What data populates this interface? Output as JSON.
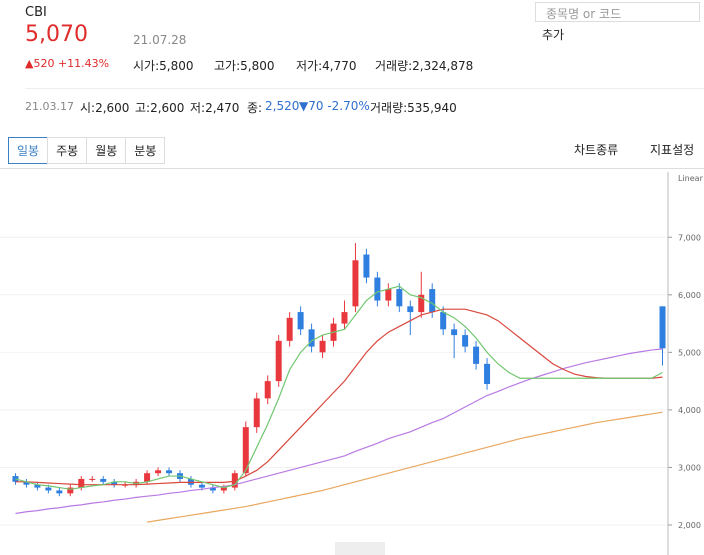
{
  "header": {
    "symbol": "CBI",
    "price": "5,070",
    "date": "21.07.28",
    "change": "▲520 +11.43%",
    "stats": [
      "시가:5,800",
      "고가:5,800",
      "저가:4,770",
      "거래량:2,324,878"
    ],
    "search_placeholder": "종목명 or 코드",
    "add_button": "추가",
    "prev": {
      "date": "21.03.17",
      "items": [
        "시:2,600",
        "고:2,600",
        "저:2,470"
      ],
      "close": "종:",
      "close_value": "2,520",
      "change": "▼70 -2.70%",
      "volume": "거래량:535,940"
    }
  },
  "tabs": [
    "일봉",
    "주봉",
    "월봉",
    "분봉"
  ],
  "tools": [
    "차트종류",
    "지표설정"
  ],
  "chart_data": {
    "type": "candlestick",
    "scale_label": "Linear",
    "categories": [
      null,
      null,
      null,
      null,
      null,
      null,
      null,
      null,
      null,
      null,
      null,
      null,
      null,
      null,
      null,
      null,
      null,
      null,
      null,
      null,
      null,
      null,
      null,
      null,
      null,
      null,
      null,
      null,
      null,
      null,
      null,
      null,
      null,
      null,
      null,
      null,
      null,
      null,
      null,
      null,
      null,
      null,
      null,
      null,
      null,
      null,
      null,
      null,
      null,
      null,
      null,
      null,
      null,
      null,
      null,
      null,
      null,
      null,
      null,
      null
    ],
    "open": [
      2850,
      2750,
      2700,
      2650,
      2600,
      2550,
      2650,
      2800,
      2800,
      2750,
      2700,
      2700,
      2750,
      2900,
      2950,
      2900,
      2800,
      2700,
      2650,
      2600,
      2650,
      2900,
      3700,
      4200,
      4500,
      5200,
      5700,
      5400,
      5000,
      5200,
      5500,
      5800,
      6700,
      6300,
      5900,
      6100,
      5800,
      5700,
      6100,
      5700,
      5400,
      5300,
      5100,
      4800,
      null,
      null,
      null,
      null,
      null,
      null,
      null,
      null,
      null,
      null,
      null,
      null,
      null,
      null,
      null,
      5800
    ],
    "high": [
      2900,
      2800,
      2750,
      2700,
      2650,
      2700,
      2850,
      2850,
      2850,
      2800,
      2750,
      2800,
      2950,
      3000,
      3000,
      2950,
      2850,
      2750,
      2700,
      2700,
      2950,
      3800,
      4300,
      4600,
      5300,
      5700,
      5800,
      5500,
      5300,
      5600,
      5900,
      6900,
      6800,
      6400,
      6200,
      6200,
      5900,
      6400,
      6200,
      5800,
      5500,
      5400,
      5200,
      4900,
      null,
      null,
      null,
      null,
      null,
      null,
      null,
      null,
      null,
      null,
      null,
      null,
      null,
      null,
      null,
      5800
    ],
    "low": [
      2700,
      2650,
      2600,
      2550,
      2500,
      2500,
      2600,
      2750,
      2700,
      2650,
      2650,
      2650,
      2700,
      2850,
      2850,
      2750,
      2650,
      2600,
      2550,
      2550,
      2600,
      2850,
      3600,
      4100,
      4400,
      5100,
      5300,
      5000,
      4900,
      5100,
      5400,
      5700,
      6200,
      5800,
      5800,
      5700,
      5300,
      5600,
      5600,
      5300,
      4900,
      5000,
      4700,
      4350,
      null,
      null,
      null,
      null,
      null,
      null,
      null,
      null,
      null,
      null,
      null,
      null,
      null,
      null,
      null,
      4770
    ],
    "close": [
      2750,
      2700,
      2650,
      2600,
      2550,
      2650,
      2800,
      2800,
      2750,
      2700,
      2700,
      2750,
      2900,
      2950,
      2900,
      2800,
      2700,
      2650,
      2600,
      2650,
      2900,
      3700,
      4200,
      4500,
      5200,
      5600,
      5400,
      5100,
      5200,
      5500,
      5700,
      6600,
      6300,
      5900,
      6100,
      5800,
      5700,
      6000,
      5700,
      5400,
      5300,
      5100,
      4800,
      4450,
      null,
      null,
      null,
      null,
      null,
      null,
      null,
      null,
      null,
      null,
      null,
      null,
      null,
      null,
      null,
      5070
    ],
    "up_color": "#e8383d",
    "down_color": "#2f7fe0",
    "series": [
      {
        "color": "#71c66f",
        "values": [
          2800,
          2750,
          2700,
          2680,
          2650,
          2620,
          2650,
          2680,
          2700,
          2750,
          2750,
          2720,
          2750,
          2800,
          2850,
          2850,
          2800,
          2750,
          2700,
          2650,
          2700,
          2950,
          3350,
          3750,
          4200,
          4700,
          5000,
          5200,
          5300,
          5350,
          5400,
          5650,
          5900,
          6050,
          6100,
          6150,
          6000,
          5950,
          5850,
          5700,
          5600,
          5450,
          5250,
          5000,
          4800,
          4650,
          4550,
          4550,
          4550,
          4550,
          4550,
          4550,
          4550,
          4550,
          4550,
          4550,
          4550,
          4550,
          4550,
          4650
        ]
      },
      {
        "color": "#d9473d",
        "values": [
          2750,
          2750,
          2740,
          2730,
          2720,
          2710,
          2700,
          2700,
          2700,
          2700,
          2700,
          2700,
          2710,
          2720,
          2730,
          2740,
          2740,
          2740,
          2740,
          2740,
          2760,
          2850,
          2950,
          3100,
          3300,
          3500,
          3700,
          3900,
          4100,
          4300,
          4500,
          4750,
          5000,
          5200,
          5350,
          5450,
          5550,
          5650,
          5700,
          5750,
          5750,
          5750,
          5700,
          5650,
          5550,
          5400,
          5250,
          5100,
          4950,
          4800,
          4700,
          4620,
          4580,
          4560,
          4550,
          4550,
          4550,
          4550,
          4550,
          4570
        ]
      },
      {
        "color": "#b97ae3",
        "values": [
          2200,
          2230,
          2250,
          2280,
          2300,
          2330,
          2350,
          2380,
          2400,
          2430,
          2450,
          2480,
          2500,
          2520,
          2550,
          2570,
          2600,
          2620,
          2650,
          2670,
          2700,
          2750,
          2800,
          2850,
          2900,
          2950,
          3000,
          3050,
          3100,
          3150,
          3200,
          3280,
          3350,
          3420,
          3500,
          3560,
          3620,
          3700,
          3780,
          3850,
          3950,
          4050,
          4150,
          4250,
          4320,
          4400,
          4470,
          4540,
          4600,
          4660,
          4720,
          4770,
          4820,
          4860,
          4900,
          4940,
          4980,
          5010,
          5040,
          5060
        ]
      },
      {
        "color": "#e9a860",
        "values": [
          null,
          null,
          null,
          null,
          null,
          null,
          null,
          null,
          null,
          null,
          null,
          null,
          2050,
          2080,
          2110,
          2140,
          2170,
          2200,
          2230,
          2260,
          2290,
          2320,
          2360,
          2400,
          2440,
          2480,
          2520,
          2560,
          2600,
          2650,
          2700,
          2750,
          2800,
          2850,
          2900,
          2950,
          3000,
          3050,
          3100,
          3150,
          3200,
          3250,
          3300,
          3350,
          3400,
          3450,
          3500,
          3540,
          3580,
          3620,
          3660,
          3700,
          3740,
          3780,
          3810,
          3840,
          3870,
          3900,
          3930,
          3960
        ]
      }
    ],
    "ylim": [
      1600,
      8030
    ],
    "yticks": [
      {
        "value": 2000,
        "label": "2,000"
      },
      {
        "value": 3000,
        "label": "3,000"
      },
      {
        "value": 4000,
        "label": "4,000"
      },
      {
        "value": 5000,
        "label": "5,000"
      },
      {
        "value": 6000,
        "label": "6,000"
      },
      {
        "value": 7000,
        "label": "7,000"
      }
    ],
    "grid": true
  }
}
